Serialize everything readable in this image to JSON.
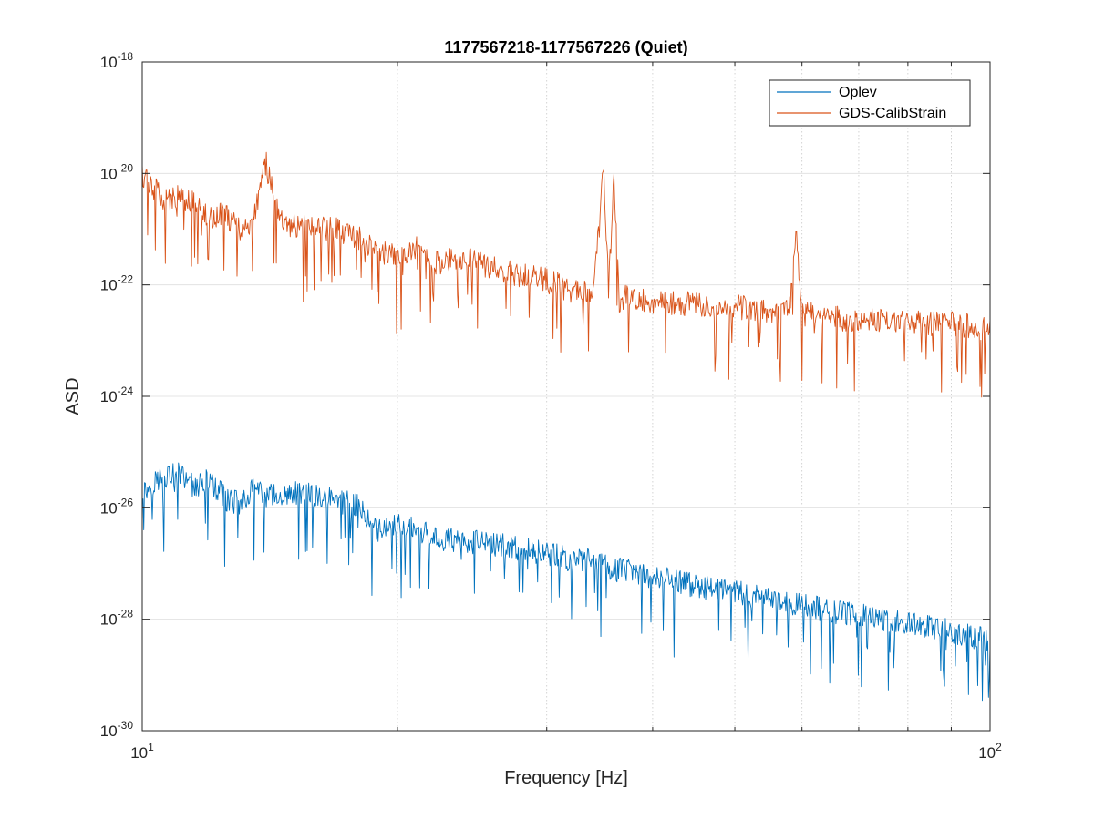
{
  "chart_data": {
    "type": "line",
    "title": "1177567218-1177567226 (Quiet)",
    "xlabel": "Frequency [Hz]",
    "ylabel": "ASD",
    "x_scale": "log",
    "y_scale": "log",
    "xlim": [
      10,
      100
    ],
    "ylim": [
      1e-30,
      1e-18
    ],
    "grid": true,
    "legend_position": "top-right",
    "x_ticks": [
      {
        "value": 10,
        "base": "10",
        "exp": "1"
      },
      {
        "value": 100,
        "base": "10",
        "exp": "2"
      }
    ],
    "y_ticks": [
      {
        "value": 1e-30,
        "base": "10",
        "exp": "-30"
      },
      {
        "value": 1e-28,
        "base": "10",
        "exp": "-28"
      },
      {
        "value": 1e-26,
        "base": "10",
        "exp": "-26"
      },
      {
        "value": 1e-24,
        "base": "10",
        "exp": "-24"
      },
      {
        "value": 1e-22,
        "base": "10",
        "exp": "-22"
      },
      {
        "value": 1e-20,
        "base": "10",
        "exp": "-20"
      },
      {
        "value": 1e-18,
        "base": "10",
        "exp": "-18"
      }
    ],
    "series": [
      {
        "name": "Oplev",
        "color": "#0072BD",
        "x": [
          10,
          10.5,
          11,
          11.5,
          12,
          12.5,
          13,
          13.5,
          14,
          15,
          16,
          17,
          18,
          19,
          20,
          22,
          24,
          26,
          28,
          30,
          32,
          34,
          36,
          38,
          40,
          45,
          50,
          55,
          60,
          65,
          70,
          75,
          80,
          85,
          90,
          95,
          100
        ],
        "y": [
          1.8e-26,
          3.5e-26,
          4.2e-26,
          2.5e-26,
          3e-26,
          1.5e-26,
          1.2e-26,
          2e-26,
          1.6e-26,
          1.8e-26,
          1.6e-26,
          1.3e-26,
          1.1e-26,
          4e-27,
          5e-27,
          3e-27,
          2.5e-27,
          2.2e-27,
          1.8e-27,
          1.5e-27,
          1.2e-27,
          1.1e-27,
          8e-28,
          7e-28,
          6e-28,
          4e-28,
          3e-28,
          2.3e-28,
          1.8e-28,
          1.4e-28,
          1.2e-28,
          1e-28,
          8e-29,
          7e-29,
          6e-29,
          5e-29,
          4e-29
        ]
      },
      {
        "name": "GDS-CalibStrain",
        "color": "#D95319",
        "x": [
          10,
          10.3,
          10.6,
          11,
          11.5,
          12,
          12.5,
          13,
          13.5,
          13.8,
          14,
          14.5,
          15,
          16,
          17,
          18,
          19,
          20,
          21,
          22,
          24,
          26,
          28,
          30,
          32,
          34,
          35,
          35.5,
          36,
          36.5,
          37,
          38,
          40,
          45,
          50,
          55,
          58,
          59,
          60,
          61,
          63,
          65,
          70,
          75,
          80,
          85,
          90,
          95,
          100
        ],
        "y": [
          9e-21,
          6e-21,
          3e-21,
          4e-21,
          3e-21,
          1.5e-21,
          2e-21,
          1e-21,
          1.2e-21,
          7e-21,
          1.5e-20,
          1.5e-21,
          1.2e-21,
          1.1e-21,
          1e-21,
          7e-22,
          4e-22,
          3e-22,
          5e-22,
          2.5e-22,
          3e-22,
          2e-22,
          1.5e-22,
          1.2e-22,
          8e-23,
          7e-23,
          1.2e-20,
          8e-23,
          1e-20,
          5e-23,
          6e-23,
          6e-23,
          5e-23,
          4.5e-23,
          4e-23,
          3.5e-23,
          3.4e-23,
          1e-21,
          3e-23,
          3e-23,
          2.8e-23,
          2.5e-23,
          2.4e-23,
          2.3e-23,
          2.2e-23,
          2e-23,
          2e-23,
          1.8e-23,
          1.6e-23
        ]
      }
    ]
  }
}
